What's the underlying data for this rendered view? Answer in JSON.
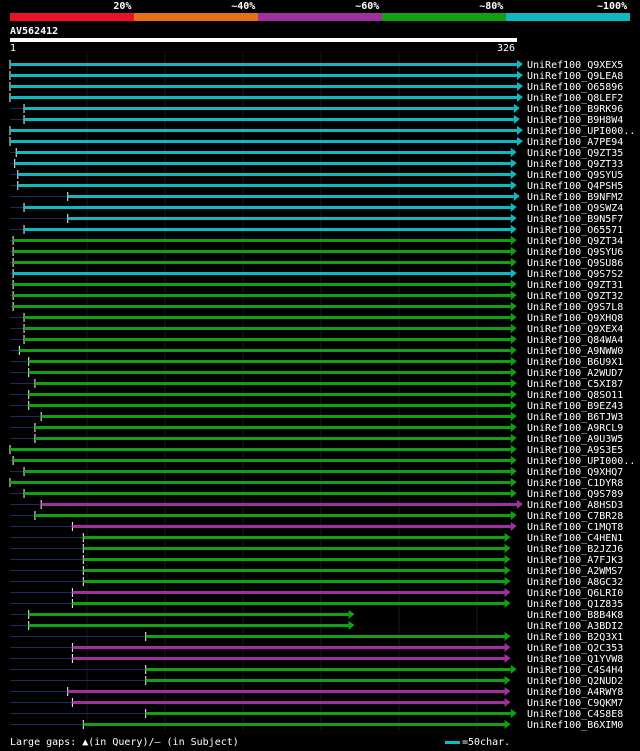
{
  "legend": {
    "labels": [
      "20%",
      "~40%",
      "~60%",
      "~80%",
      "~100%"
    ],
    "colors": [
      "#e8102a",
      "#e87010",
      "#a030a0",
      "#10a010",
      "#10b8c0"
    ]
  },
  "query": {
    "name": "AV562412",
    "start_label": "1",
    "end_label": "326"
  },
  "footer": {
    "gaps_label": "Large gaps: ▲(in Query)/– (in Subject)",
    "scale_label": "=50char."
  },
  "chart_data": {
    "type": "alignment",
    "query_length": 326,
    "hits": [
      {
        "name": "UniRef100_Q9XEX5",
        "start": 1,
        "end": 326,
        "identity_color": "#10b8c0"
      },
      {
        "name": "UniRef100_Q9LEA8",
        "start": 1,
        "end": 326,
        "identity_color": "#10b8c0"
      },
      {
        "name": "UniRef100_O65896",
        "start": 1,
        "end": 326,
        "identity_color": "#10b8c0"
      },
      {
        "name": "UniRef100_Q8LEF2",
        "start": 1,
        "end": 326,
        "identity_color": "#10b8c0"
      },
      {
        "name": "UniRef100_B9RK96",
        "start": 10,
        "end": 324,
        "identity_color": "#10b8c0"
      },
      {
        "name": "UniRef100_B9H8W4",
        "start": 10,
        "end": 324,
        "identity_color": "#10b8c0"
      },
      {
        "name": "UniRef100_UPI000..",
        "start": 1,
        "end": 326,
        "identity_color": "#10b8c0"
      },
      {
        "name": "UniRef100_A7PE94",
        "start": 1,
        "end": 326,
        "identity_color": "#10b8c0"
      },
      {
        "name": "UniRef100_Q9ZT35",
        "start": 5,
        "end": 322,
        "identity_color": "#10b8c0"
      },
      {
        "name": "UniRef100_Q9ZT33",
        "start": 4,
        "end": 322,
        "identity_color": "#10b8c0"
      },
      {
        "name": "UniRef100_Q9SYU5",
        "start": 6,
        "end": 322,
        "identity_color": "#10b8c0"
      },
      {
        "name": "UniRef100_Q4PSH5",
        "start": 6,
        "end": 322,
        "identity_color": "#10b8c0"
      },
      {
        "name": "UniRef100_B9NFM2",
        "start": 38,
        "end": 324,
        "identity_color": "#10b8c0"
      },
      {
        "name": "UniRef100_Q9SWZ4",
        "start": 10,
        "end": 322,
        "identity_color": "#10b8c0"
      },
      {
        "name": "UniRef100_B9N5F7",
        "start": 38,
        "end": 322,
        "identity_color": "#10b8c0"
      },
      {
        "name": "UniRef100_O65571",
        "start": 10,
        "end": 322,
        "identity_color": "#10b8c0"
      },
      {
        "name": "UniRef100_Q9ZT34",
        "start": 3,
        "end": 322,
        "identity_color": "#10a010"
      },
      {
        "name": "UniRef100_Q9SYU6",
        "start": 3,
        "end": 322,
        "identity_color": "#10a010"
      },
      {
        "name": "UniRef100_Q9SU86",
        "start": 3,
        "end": 322,
        "identity_color": "#10a010"
      },
      {
        "name": "UniRef100_Q9S7S2",
        "start": 3,
        "end": 322,
        "identity_color": "#10b8c0"
      },
      {
        "name": "UniRef100_Q9ZT31",
        "start": 3,
        "end": 322,
        "identity_color": "#10a010"
      },
      {
        "name": "UniRef100_Q9ZT32",
        "start": 3,
        "end": 322,
        "identity_color": "#10a010"
      },
      {
        "name": "UniRef100_Q9S7L8",
        "start": 3,
        "end": 322,
        "identity_color": "#10a010"
      },
      {
        "name": "UniRef100_Q9XHQ8",
        "start": 10,
        "end": 322,
        "identity_color": "#10a010"
      },
      {
        "name": "UniRef100_Q9XEX4",
        "start": 10,
        "end": 322,
        "identity_color": "#10a010"
      },
      {
        "name": "UniRef100_Q84WA4",
        "start": 10,
        "end": 322,
        "identity_color": "#10a010"
      },
      {
        "name": "UniRef100_A9NWW0",
        "start": 7,
        "end": 322,
        "identity_color": "#10a010"
      },
      {
        "name": "UniRef100_B6U9X1",
        "start": 13,
        "end": 322,
        "identity_color": "#10a010"
      },
      {
        "name": "UniRef100_A2WUD7",
        "start": 13,
        "end": 322,
        "identity_color": "#10a010"
      },
      {
        "name": "UniRef100_C5XI87",
        "start": 17,
        "end": 322,
        "identity_color": "#10a010"
      },
      {
        "name": "UniRef100_Q8SO11",
        "start": 13,
        "end": 322,
        "identity_color": "#10a010"
      },
      {
        "name": "UniRef100_B9EZ43",
        "start": 13,
        "end": 322,
        "identity_color": "#10a010"
      },
      {
        "name": "UniRef100_B6TJW3",
        "start": 21,
        "end": 322,
        "identity_color": "#10a010"
      },
      {
        "name": "UniRef100_A9RCL9",
        "start": 17,
        "end": 322,
        "identity_color": "#10a010"
      },
      {
        "name": "UniRef100_A9U3W5",
        "start": 17,
        "end": 322,
        "identity_color": "#10a010"
      },
      {
        "name": "UniRef100_A9S3E5",
        "start": 1,
        "end": 322,
        "identity_color": "#10a010"
      },
      {
        "name": "UniRef100_UPI000..",
        "start": 3,
        "end": 322,
        "identity_color": "#10a010"
      },
      {
        "name": "UniRef100_Q9XHQ7",
        "start": 10,
        "end": 322,
        "identity_color": "#10a010"
      },
      {
        "name": "UniRef100_C1DYR8",
        "start": 1,
        "end": 322,
        "identity_color": "#10a010"
      },
      {
        "name": "UniRef100_Q9S789",
        "start": 10,
        "end": 322,
        "identity_color": "#10a010"
      },
      {
        "name": "UniRef100_A8HSD3",
        "start": 21,
        "end": 326,
        "identity_color": "#a030a0"
      },
      {
        "name": "UniRef100_C7BR28",
        "start": 17,
        "end": 322,
        "identity_color": "#10a010"
      },
      {
        "name": "UniRef100_C1MQT8",
        "start": 41,
        "end": 322,
        "identity_color": "#a030a0"
      },
      {
        "name": "UniRef100_C4HEN1",
        "start": 48,
        "end": 318,
        "identity_color": "#10a010"
      },
      {
        "name": "UniRef100_B2JZJ6",
        "start": 48,
        "end": 318,
        "identity_color": "#10a010"
      },
      {
        "name": "UniRef100_A7FJK3",
        "start": 48,
        "end": 318,
        "identity_color": "#10a010"
      },
      {
        "name": "UniRef100_A2WMS7",
        "start": 48,
        "end": 318,
        "identity_color": "#10a010"
      },
      {
        "name": "UniRef100_A8GC32",
        "start": 48,
        "end": 318,
        "identity_color": "#10a010"
      },
      {
        "name": "UniRef100_Q6LRI0",
        "start": 41,
        "end": 318,
        "identity_color": "#a030a0"
      },
      {
        "name": "UniRef100_Q1Z835",
        "start": 41,
        "end": 318,
        "identity_color": "#10a010"
      },
      {
        "name": "UniRef100_B8B4K8",
        "start": 13,
        "end": 218,
        "identity_color": "#10a010"
      },
      {
        "name": "UniRef100_A3BDI2",
        "start": 13,
        "end": 218,
        "identity_color": "#10a010"
      },
      {
        "name": "UniRef100_B2Q3X1",
        "start": 88,
        "end": 318,
        "identity_color": "#10a010"
      },
      {
        "name": "UniRef100_Q2C353",
        "start": 41,
        "end": 318,
        "identity_color": "#a030a0"
      },
      {
        "name": "UniRef100_Q1YVW8",
        "start": 41,
        "end": 318,
        "identity_color": "#a030a0"
      },
      {
        "name": "UniRef100_C4S4H4",
        "start": 88,
        "end": 322,
        "identity_color": "#10a010"
      },
      {
        "name": "UniRef100_Q2NUD2",
        "start": 88,
        "end": 318,
        "identity_color": "#10a010"
      },
      {
        "name": "UniRef100_A4RWY8",
        "start": 38,
        "end": 318,
        "identity_color": "#a030a0"
      },
      {
        "name": "UniRef100_C9QKM7",
        "start": 41,
        "end": 318,
        "identity_color": "#a030a0"
      },
      {
        "name": "UniRef100_C4S8E8",
        "start": 88,
        "end": 322,
        "identity_color": "#10a010"
      },
      {
        "name": "UniRef100_B6XIM0",
        "start": 48,
        "end": 318,
        "identity_color": "#10a010"
      }
    ]
  }
}
